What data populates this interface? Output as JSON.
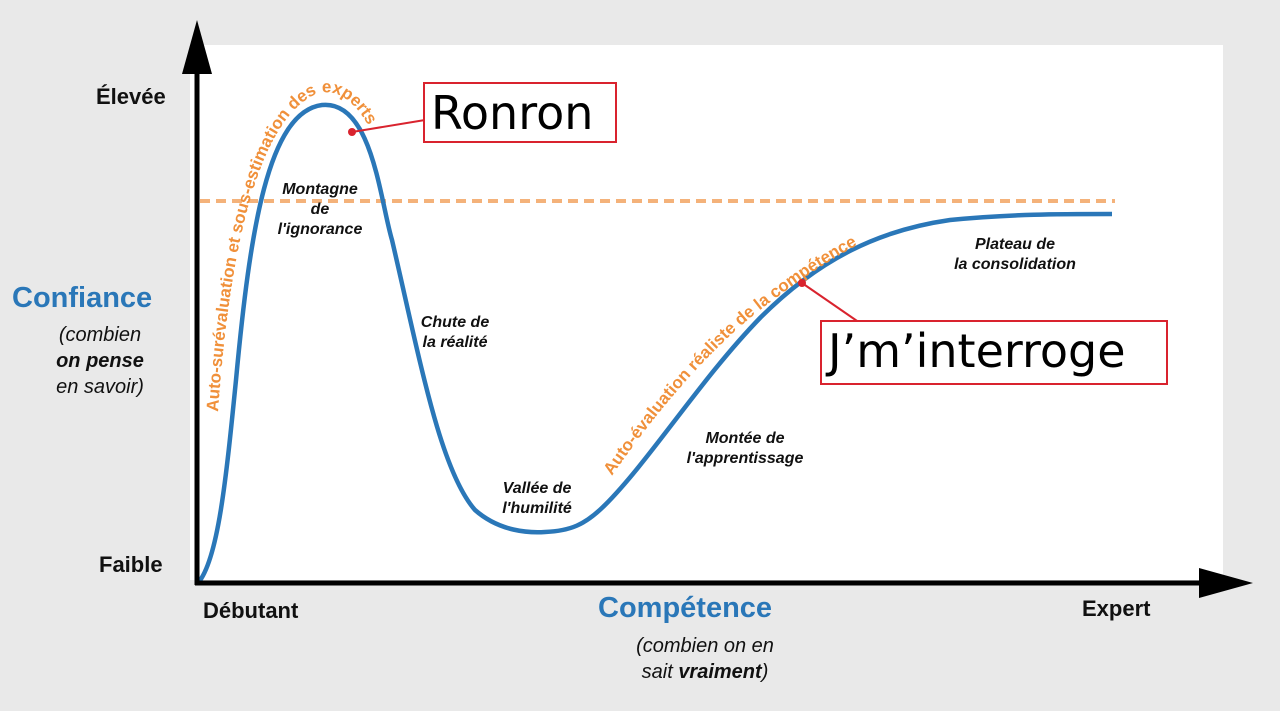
{
  "y_axis": {
    "top_label": "Élevée",
    "bottom_label": "Faible",
    "title": "Confiance",
    "subtitle_line1": "(combien",
    "subtitle_line2": "on pense",
    "subtitle_line3": "en savoir)"
  },
  "x_axis": {
    "left_label": "Débutant",
    "right_label": "Expert",
    "title": "Compétence",
    "subtitle_line1": "(combien on en",
    "subtitle_line2_pre": "sait ",
    "subtitle_line2_bold": "vraiment",
    "subtitle_line2_post": ")"
  },
  "stages": {
    "peak": [
      "Montagne",
      "de",
      "l'ignorance"
    ],
    "fall": [
      "Chute de",
      "la réalité"
    ],
    "valley": [
      "Vallée de",
      "l'humilité"
    ],
    "climb": [
      "Montée de",
      "l'apprentissage"
    ],
    "plateau": [
      "Plateau de",
      "la consolidation"
    ]
  },
  "curve_annotations": {
    "overestimation": "Auto-surévaluation et sous-estimation des experts",
    "realistic": "Auto-évaluation réaliste de la compétence"
  },
  "callouts": {
    "first": "Ronron",
    "second": "J’m’interroge"
  },
  "colors": {
    "curve": "#2a77b8",
    "annotation": "#f0903a",
    "dashed_line": "#f4b27a",
    "callout_border": "#d9232e",
    "panel": "#ffffff",
    "background": "#e9e9e9"
  }
}
